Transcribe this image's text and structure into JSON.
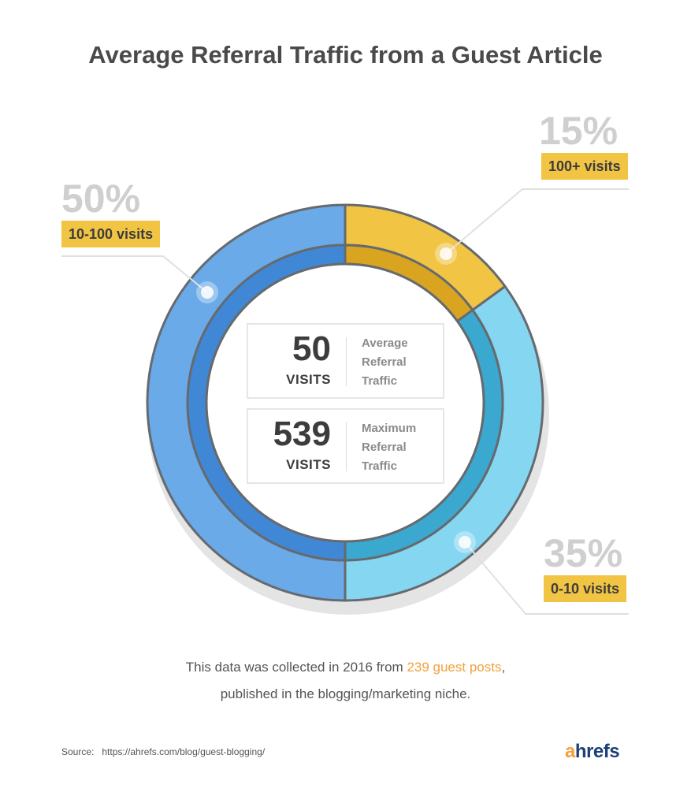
{
  "title": "Average Referral Traffic from a Guest Article",
  "chart_data": {
    "type": "pie",
    "title": "Average Referral Traffic from a Guest Article",
    "donut": true,
    "slices": [
      {
        "label": "100+ visits",
        "percent_label": "15%",
        "value": 15,
        "color": "#f2c443",
        "inner_color": "#d9a520"
      },
      {
        "label": "0-10 visits",
        "percent_label": "35%",
        "value": 35,
        "color": "#85d6f1",
        "inner_color": "#3ba8cf"
      },
      {
        "label": "10-100 visits",
        "percent_label": "50%",
        "value": 50,
        "color": "#6aaae8",
        "inner_color": "#4088d6"
      }
    ]
  },
  "center_stats": [
    {
      "number": "50",
      "unit": "VISITS",
      "label": [
        "Average",
        "Referral",
        "Traffic"
      ]
    },
    {
      "number": "539",
      "unit": "VISITS",
      "label": [
        "Maximum",
        "Referral",
        "Traffic"
      ]
    }
  ],
  "note": {
    "line1_before": "This data was collected in 2016 from ",
    "line1_highlight": "239 guest posts",
    "line1_after": ",",
    "line2": "published in the blogging/marketing niche."
  },
  "source": {
    "label": "Source:",
    "url": "https://ahrefs.com/blog/guest-blogging/"
  },
  "logo": {
    "a": "a",
    "rest": "hrefs"
  }
}
